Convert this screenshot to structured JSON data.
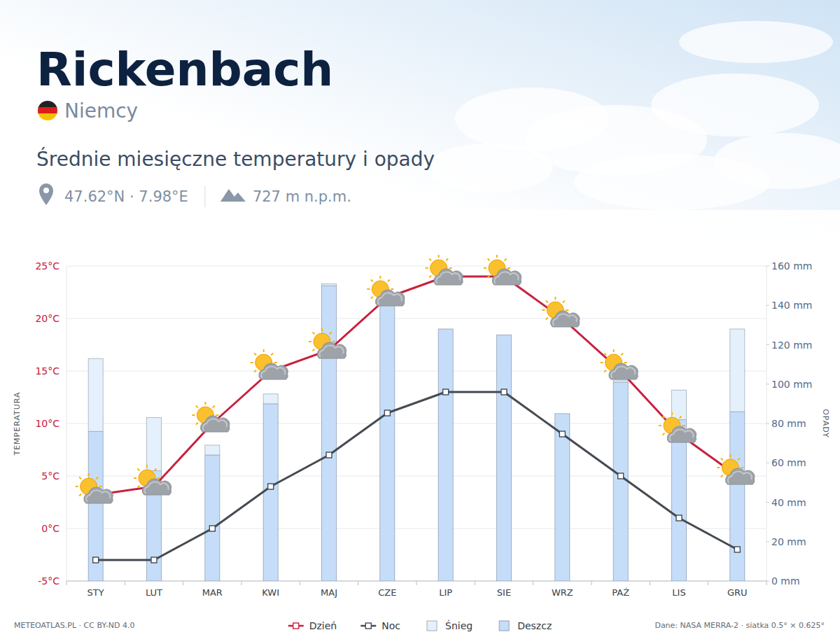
{
  "header": {
    "title": "Rickenbach",
    "country": "Niemcy",
    "subtitle": "Średnie miesięczne temperatury i opady",
    "coordinates": "47.62°N · 7.98°E",
    "elevation": "727 m n.p.m."
  },
  "footer": {
    "source_left": "METEOATLAS.PL · CC BY-ND 4.0",
    "source_right": "Dane: NASA MERRA-2 · siatka 0.5° × 0.625°"
  },
  "chart_data": {
    "type": "bar",
    "title": "Średnie miesięczne temperatury i opady",
    "categories": [
      "STY",
      "LUT",
      "MAR",
      "KWI",
      "MAJ",
      "CZE",
      "LIP",
      "SIE",
      "WRZ",
      "PAŹ",
      "LIS",
      "GRU"
    ],
    "ylabel": "TEMPERATURA",
    "y2label": "OPADY",
    "ylim": [
      -5,
      25
    ],
    "yticks": [
      {
        "value": -5,
        "label": "-5°C"
      },
      {
        "value": 0,
        "label": "0°C"
      },
      {
        "value": 5,
        "label": "5°C"
      },
      {
        "value": 10,
        "label": "10°C"
      },
      {
        "value": 15,
        "label": "15°C"
      },
      {
        "value": 20,
        "label": "20°C"
      },
      {
        "value": 25,
        "label": "25°C"
      }
    ],
    "y2lim": [
      0,
      160
    ],
    "y2ticks": [
      {
        "value": 0,
        "label": "0 mm"
      },
      {
        "value": 20,
        "label": "20 mm"
      },
      {
        "value": 40,
        "label": "40 mm"
      },
      {
        "value": 60,
        "label": "60 mm"
      },
      {
        "value": 80,
        "label": "80 mm"
      },
      {
        "value": 100,
        "label": "100 mm"
      },
      {
        "value": 120,
        "label": "120 mm"
      },
      {
        "value": 140,
        "label": "140 mm"
      },
      {
        "value": 160,
        "label": "160 mm"
      }
    ],
    "grid": true,
    "legend": "bottom",
    "stacked": true,
    "series": [
      {
        "name": "Dzień",
        "type": "line",
        "color": "#c8203e",
        "marker": "square",
        "values": [
          3.2,
          4,
          10,
          15,
          17,
          22,
          24,
          24,
          20,
          15,
          9,
          5
        ]
      },
      {
        "name": "Noc",
        "type": "line",
        "color": "#444a52",
        "marker": "square",
        "values": [
          -3,
          -3,
          0,
          4,
          7,
          11,
          13,
          13,
          9,
          5,
          1,
          -2
        ]
      },
      {
        "name": "Śnieg",
        "type": "bar",
        "axis": "y2",
        "color": "#e4f0fc",
        "values": [
          37,
          27,
          5,
          5,
          1,
          0,
          0,
          0,
          0,
          1,
          15,
          42
        ]
      },
      {
        "name": "Deszcz",
        "type": "bar",
        "axis": "y2",
        "color": "#c6ddf9",
        "values": [
          76,
          56,
          64,
          90,
          150,
          142,
          128,
          125,
          85,
          101,
          82,
          86
        ]
      }
    ]
  }
}
